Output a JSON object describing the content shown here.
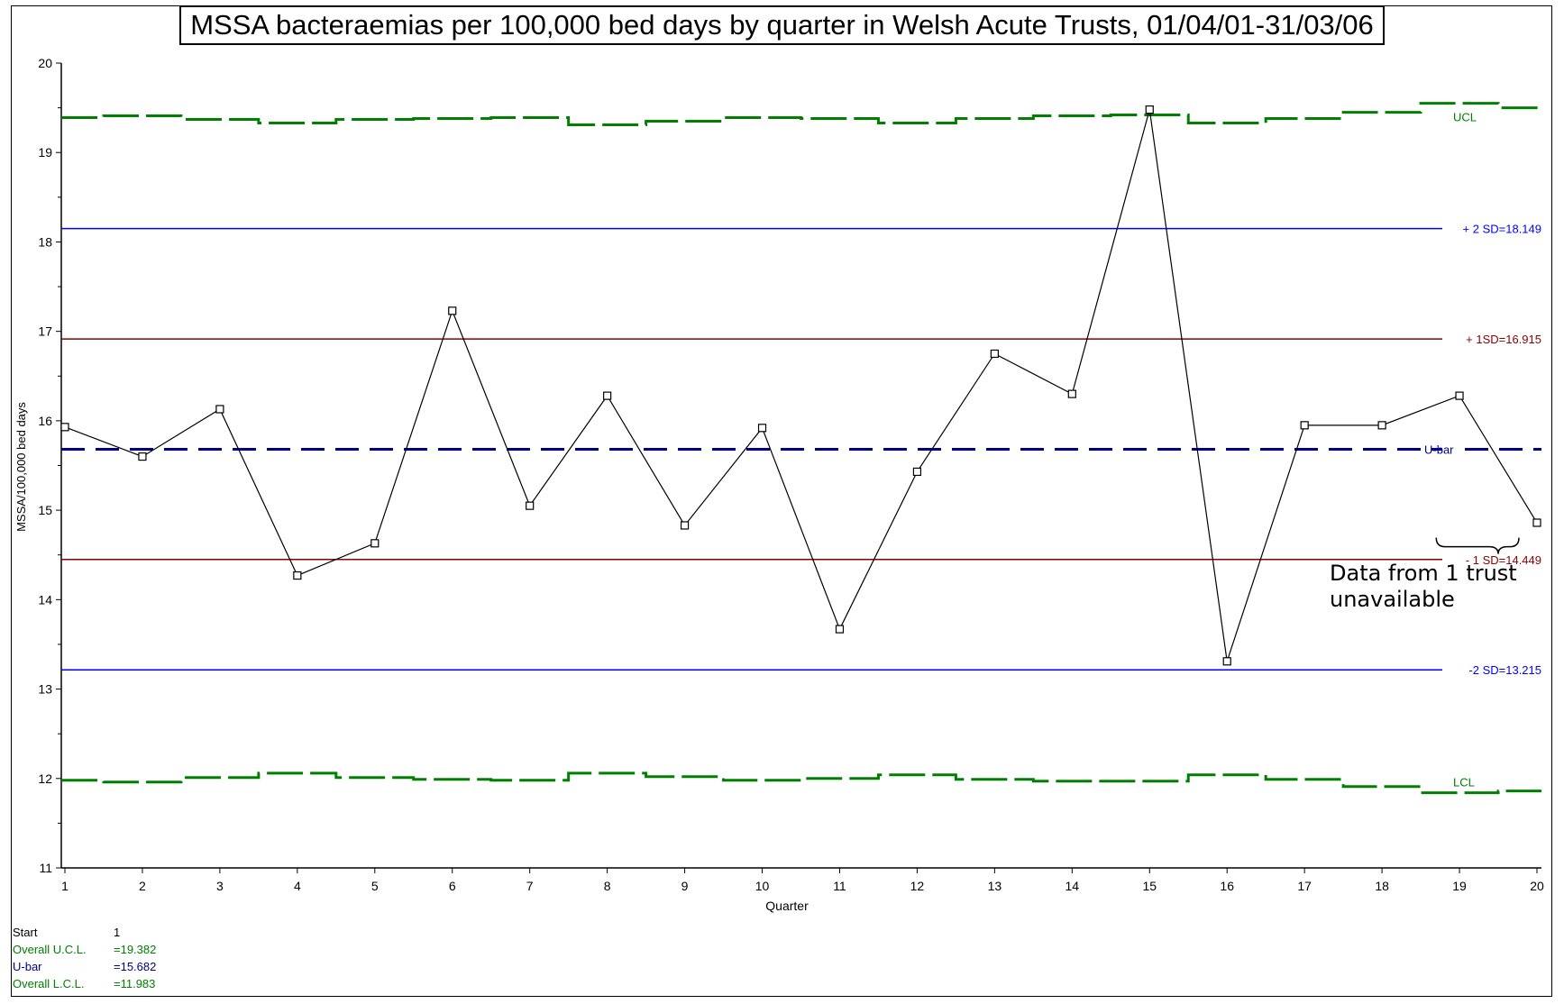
{
  "chart_data": {
    "type": "line",
    "title": "MSSA bacteraemias per 100,000 bed days by quarter in Welsh Acute Trusts, 01/04/01-31/03/06",
    "xlabel": "Quarter",
    "ylabel": "MSSA/100,000 bed days",
    "ylim": [
      11,
      20
    ],
    "xlim": [
      1,
      20
    ],
    "x": [
      1,
      2,
      3,
      4,
      5,
      6,
      7,
      8,
      9,
      10,
      11,
      12,
      13,
      14,
      15,
      16,
      17,
      18,
      19,
      20
    ],
    "yticks": [
      11,
      12,
      13,
      14,
      15,
      16,
      17,
      18,
      19,
      20
    ],
    "series": [
      {
        "values": [
          15.93,
          15.6,
          16.13,
          14.27,
          14.63,
          17.23,
          15.05,
          16.28,
          14.83,
          15.92,
          13.67,
          15.43,
          16.75,
          16.3,
          19.48,
          13.31,
          15.95,
          15.95,
          16.28,
          14.86
        ],
        "color": "#000000",
        "marker": "square"
      }
    ],
    "ucl_steps": [
      19.39,
      19.41,
      19.37,
      19.33,
      19.37,
      19.38,
      19.39,
      19.31,
      19.35,
      19.39,
      19.38,
      19.33,
      19.38,
      19.41,
      19.42,
      19.33,
      19.38,
      19.45,
      19.55,
      19.5
    ],
    "lcl_steps": [
      11.98,
      11.96,
      12.01,
      12.06,
      12.01,
      11.99,
      11.98,
      12.06,
      12.02,
      11.98,
      12.0,
      12.04,
      11.99,
      11.97,
      11.97,
      12.04,
      11.99,
      11.91,
      11.84,
      11.86
    ],
    "reference_lines": [
      {
        "label": "+ 2 SD=18.149",
        "value": 18.149,
        "color": "#0000ff",
        "style": "solid"
      },
      {
        "label": "+ 1SD=16.915",
        "value": 16.915,
        "color": "#8b0000",
        "style": "solid"
      },
      {
        "label": "U-bar",
        "value": 15.682,
        "color": "#00008b",
        "style": "dashed"
      },
      {
        "label": "- 1 SD=14.449",
        "value": 14.449,
        "color": "#8b0000",
        "style": "solid"
      },
      {
        "label": "-2 SD=13.215",
        "value": 13.215,
        "color": "#0000ff",
        "style": "solid"
      }
    ],
    "ucl_label": "UCL",
    "lcl_label": "LCL",
    "control_color": "#008000",
    "annotation": {
      "line1": "Data from 1 trust",
      "line2": "unavailable",
      "target_x": 19.5
    }
  },
  "stats": {
    "start_label": "Start",
    "start_value": "1",
    "ucl_label": "Overall U.C.L.",
    "ucl_value": "=19.382",
    "ubar_label": "U-bar",
    "ubar_value": "=15.682",
    "lcl_label": "Overall L.C.L.",
    "lcl_value": "=11.983"
  },
  "colors": {
    "green": "#008000",
    "blue": "#0000ff",
    "darkblue": "#00008b",
    "darkred": "#8b0000"
  }
}
